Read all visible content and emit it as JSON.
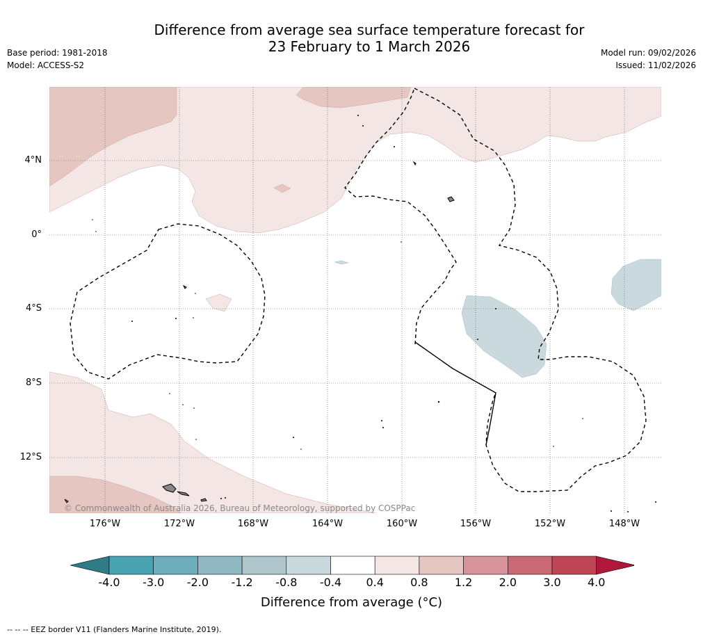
{
  "header": {
    "title_line1": "Difference from average sea surface temperature forecast for",
    "title_line2": "23 February to 1 March 2026",
    "base_period": "Base period: 1981-2018",
    "model": "Model: ACCESS-S2",
    "model_run": "Model run: 09/02/2026",
    "issued": "Issued: 11/02/2026"
  },
  "map": {
    "latitude_labels": [
      "4°N",
      "0°",
      "4°S",
      "8°S",
      "12°S"
    ],
    "longitude_labels": [
      "176°W",
      "172°W",
      "168°W",
      "164°W",
      "160°W",
      "156°W",
      "152°W",
      "148°W"
    ],
    "copyright": "© Commonwealth of Australia 2026, Bureau of Meteorology, supported by COSPPac"
  },
  "colorbar": {
    "ticks": [
      "-4.0",
      "-3.0",
      "-2.0",
      "-1.2",
      "-0.8",
      "-0.4",
      "0.4",
      "0.8",
      "1.2",
      "2.0",
      "3.0",
      "4.0"
    ],
    "colors": [
      "#2e7c86",
      "#4aa3b3",
      "#6eadbb",
      "#8fb8c3",
      "#aec6cc",
      "#c9d9dd",
      "#ffffff",
      "#f4e6e4",
      "#e6c6c1",
      "#d7949a",
      "#c96a74",
      "#bf4655",
      "#b0183a"
    ],
    "label": "Difference from average (°C)"
  },
  "footnote": "--  --  -- EEZ border V11 (Flanders Marine Institute, 2019)."
}
